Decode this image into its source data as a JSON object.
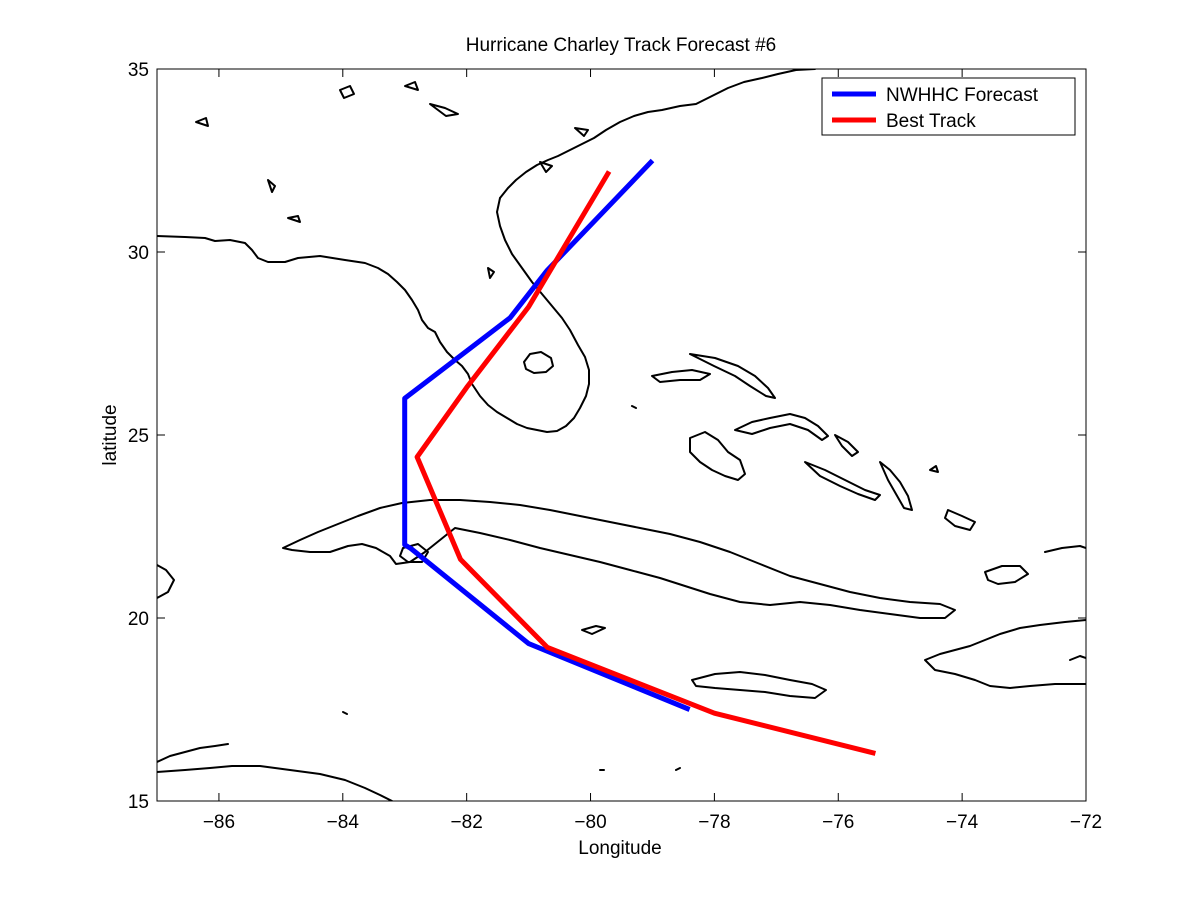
{
  "chart_data": {
    "type": "line",
    "title": "Hurricane Charley Track Forecast #6",
    "xlabel": "Longitude",
    "ylabel": "latitude",
    "xlim": [
      -87,
      -72
    ],
    "ylim": [
      15,
      35
    ],
    "x_ticks": [
      -86,
      -84,
      -82,
      -80,
      -78,
      -76,
      -74,
      -72
    ],
    "y_ticks": [
      15,
      20,
      25,
      30,
      35
    ],
    "x_tick_labels": [
      "−86",
      "−84",
      "−82",
      "−80",
      "−78",
      "−76",
      "−74",
      "−72"
    ],
    "y_tick_labels": [
      "15",
      "20",
      "25",
      "30",
      "35"
    ],
    "grid": false,
    "legend_position": "top-right",
    "series": [
      {
        "name": "NWHHC Forecast",
        "color": "#0000ff",
        "points": [
          [
            -78.4,
            17.5
          ],
          [
            -81.0,
            19.3
          ],
          [
            -82.9,
            21.9
          ],
          [
            -83.0,
            22.0
          ],
          [
            -83.0,
            26.0
          ],
          [
            -81.3,
            28.2
          ],
          [
            -80.7,
            29.5
          ],
          [
            -79.0,
            32.5
          ]
        ]
      },
      {
        "name": "Best Track",
        "color": "#ff0000",
        "points": [
          [
            -75.4,
            16.3
          ],
          [
            -78.0,
            17.4
          ],
          [
            -80.7,
            19.2
          ],
          [
            -82.1,
            21.6
          ],
          [
            -82.8,
            24.4
          ],
          [
            -82.0,
            26.3
          ],
          [
            -81.0,
            28.5
          ],
          [
            -79.7,
            32.2
          ]
        ]
      }
    ]
  },
  "map": {
    "coastline_color": "#000000"
  }
}
